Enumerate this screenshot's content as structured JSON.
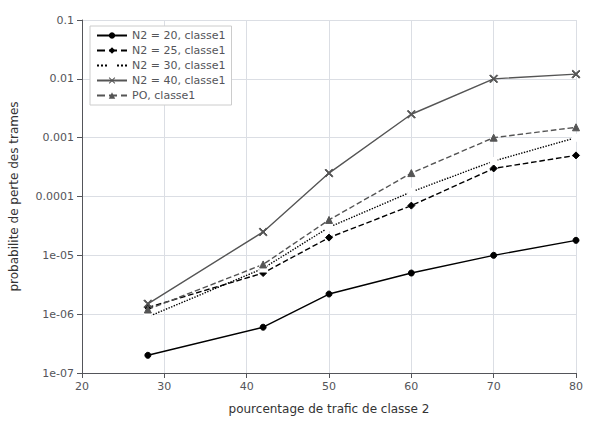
{
  "chart_data": {
    "type": "line",
    "x": [
      28,
      42,
      50,
      60,
      70,
      80
    ],
    "series": [
      {
        "name": "N2 = 20, classe1",
        "color": "#000000",
        "values": [
          2e-07,
          6e-07,
          2.2e-06,
          5e-06,
          1e-05,
          1.8e-05
        ],
        "marker": "circle",
        "line_style": "solid"
      },
      {
        "name": "N2 = 25, classe1",
        "color": "#000000",
        "values": [
          1.3e-06,
          5e-06,
          2e-05,
          7e-05,
          0.0003,
          0.0005
        ],
        "marker": "diamond",
        "line_style": "dashed"
      },
      {
        "name": "N2 = 30, classe1",
        "color": "#000000",
        "values": [
          9e-07,
          6e-06,
          3e-05,
          0.00012,
          0.0004,
          0.001
        ],
        "marker": "square_open",
        "line_style": "dotted"
      },
      {
        "name": "N2 = 40, classe1",
        "color": "#555555",
        "values": [
          1.5e-06,
          2.5e-05,
          0.00025,
          0.0025,
          0.01,
          0.012
        ],
        "marker": "x",
        "line_style": "solid"
      },
      {
        "name": "PO, classe1",
        "color": "#555555",
        "values": [
          1.2e-06,
          7e-06,
          4e-05,
          0.00025,
          0.001,
          0.0015
        ],
        "marker": "triangle",
        "line_style": "dashed"
      }
    ],
    "xlabel": "pourcentage de trafic de classe 2",
    "ylabel": "probabilite de perte des trames",
    "xlim": [
      20,
      80
    ],
    "ylim": [
      1e-07,
      0.1
    ],
    "xticks": [
      20,
      30,
      40,
      50,
      60,
      70,
      80
    ],
    "yticks": [
      {
        "value": 1e-07,
        "label": "1e-07"
      },
      {
        "value": 1e-06,
        "label": "1e-06"
      },
      {
        "value": 1e-05,
        "label": "1e-05"
      },
      0.0001,
      0.001,
      0.01,
      0.1
    ],
    "log": "y",
    "grid": true,
    "legend": "upper left"
  }
}
